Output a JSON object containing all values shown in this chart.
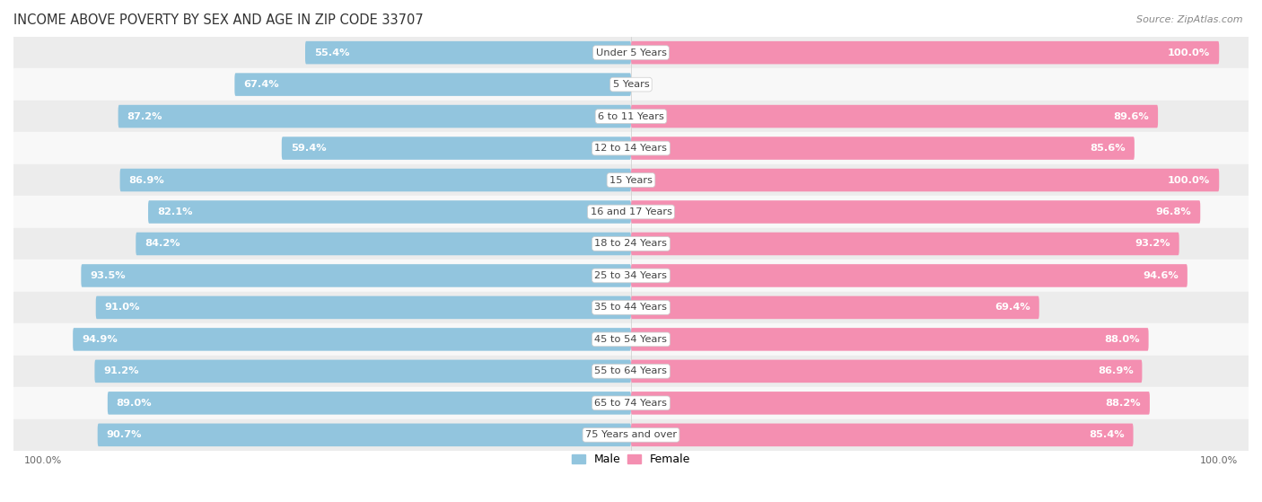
{
  "title": "INCOME ABOVE POVERTY BY SEX AND AGE IN ZIP CODE 33707",
  "source": "Source: ZipAtlas.com",
  "categories": [
    "Under 5 Years",
    "5 Years",
    "6 to 11 Years",
    "12 to 14 Years",
    "15 Years",
    "16 and 17 Years",
    "18 to 24 Years",
    "25 to 34 Years",
    "35 to 44 Years",
    "45 to 54 Years",
    "55 to 64 Years",
    "65 to 74 Years",
    "75 Years and over"
  ],
  "male_values": [
    55.4,
    67.4,
    87.2,
    59.4,
    86.9,
    82.1,
    84.2,
    93.5,
    91.0,
    94.9,
    91.2,
    89.0,
    90.7
  ],
  "female_values": [
    100.0,
    0.0,
    89.6,
    85.6,
    100.0,
    96.8,
    93.2,
    94.6,
    69.4,
    88.0,
    86.9,
    88.2,
    85.4
  ],
  "male_color": "#92c5de",
  "female_color": "#f48fb1",
  "bg_color_odd": "#ececec",
  "bg_color_even": "#f8f8f8",
  "title_fontsize": 10.5,
  "label_fontsize": 8.2,
  "cat_fontsize": 8.2,
  "axis_label_fontsize": 8,
  "legend_fontsize": 9,
  "source_fontsize": 8
}
